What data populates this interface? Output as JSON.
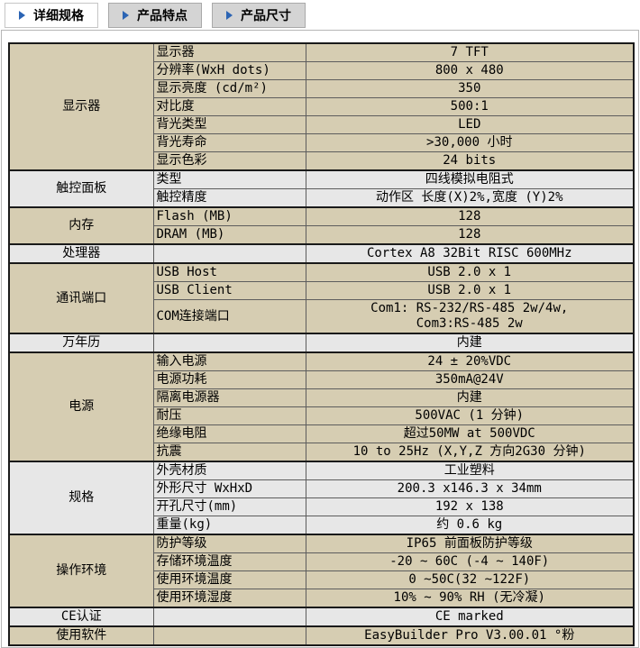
{
  "tabs": [
    {
      "label": "详细规格",
      "active": true
    },
    {
      "label": "产品特点",
      "active": false
    },
    {
      "label": "产品尺寸",
      "active": false
    }
  ],
  "colors": {
    "section_tan": "#d6cdb2",
    "section_gray": "#e7e7e7",
    "tab_active_bg": "#ffffff",
    "tab_inactive_bg": "#d4d4d4",
    "tab_arrow_blue": "#2b64b4",
    "table_border": "#1a1a1a"
  },
  "icons": {
    "tab_arrow": "right-triangle"
  },
  "spec_table": {
    "sections": [
      {
        "category": "显示器",
        "shade": "tan",
        "rows": [
          {
            "param": "显示器",
            "value": "7 TFT"
          },
          {
            "param": "分辨率(WxH dots)",
            "value": "800 x 480"
          },
          {
            "param": "显示亮度 (cd/m²)",
            "value": "350"
          },
          {
            "param": "对比度",
            "value": "500:1"
          },
          {
            "param": "背光类型",
            "value": "LED"
          },
          {
            "param": "背光寿命",
            "value": ">30,000 小时"
          },
          {
            "param": "显示色彩",
            "value": "24 bits"
          }
        ]
      },
      {
        "category": "触控面板",
        "shade": "gray",
        "rows": [
          {
            "param": "类型",
            "value": "四线模拟电阻式"
          },
          {
            "param": "触控精度",
            "value": "动作区 长度(X)2%,宽度 (Y)2%"
          }
        ]
      },
      {
        "category": "内存",
        "shade": "tan",
        "rows": [
          {
            "param": "Flash (MB)",
            "value": "128"
          },
          {
            "param": "DRAM (MB)",
            "value": "128"
          }
        ]
      },
      {
        "category": "处理器",
        "shade": "gray",
        "rows": [
          {
            "param": "",
            "value": "Cortex A8 32Bit RISC 600MHz"
          }
        ]
      },
      {
        "category": "通讯端口",
        "shade": "tan",
        "rows": [
          {
            "param": "USB Host",
            "value": "USB 2.0 x 1"
          },
          {
            "param": "USB Client",
            "value": "USB 2.0 x 1"
          },
          {
            "param": "COM连接端口",
            "value": "Com1: RS-232/RS-485 2w/4w,\nCom3:RS-485 2w"
          }
        ]
      },
      {
        "category": "万年历",
        "shade": "gray",
        "rows": [
          {
            "param": "",
            "value": "内建"
          }
        ]
      },
      {
        "category": "电源",
        "shade": "tan",
        "rows": [
          {
            "param": "输入电源",
            "value": "24 ± 20%VDC"
          },
          {
            "param": "电源功耗",
            "value": "350mA@24V"
          },
          {
            "param": "隔离电源器",
            "value": "内建"
          },
          {
            "param": "耐压",
            "value": "500VAC (1 分钟)"
          },
          {
            "param": "绝缘电阻",
            "value": "超过50MW at 500VDC"
          },
          {
            "param": "抗震",
            "value": "10 to 25Hz (X,Y,Z 方向2G30 分钟)"
          }
        ]
      },
      {
        "category": "规格",
        "shade": "gray",
        "rows": [
          {
            "param": "外壳材质",
            "value": "工业塑料"
          },
          {
            "param": "外形尺寸 WxHxD",
            "value": "200.3 x146.3 x 34mm"
          },
          {
            "param": "开孔尺寸(mm)",
            "value": "192 x 138"
          },
          {
            "param": "重量(kg)",
            "value": "约 0.6 kg"
          }
        ]
      },
      {
        "category": "操作环境",
        "shade": "tan",
        "rows": [
          {
            "param": "防护等级",
            "value": "IP65 前面板防护等级"
          },
          {
            "param": "存储环境温度",
            "value": "-20 ~ 60C (-4 ~ 140F)"
          },
          {
            "param": "使用环境温度",
            "value": "0 ~50C(32 ~122F)"
          },
          {
            "param": "使用环境湿度",
            "value": "10% ~ 90% RH (无冷凝)"
          }
        ]
      },
      {
        "category": "CE认证",
        "shade": "gray",
        "rows": [
          {
            "param": "",
            "value": "CE marked"
          }
        ]
      },
      {
        "category": "使用软件",
        "shade": "tan",
        "rows": [
          {
            "param": "",
            "value": "EasyBuilder Pro V3.00.01 °粉"
          }
        ]
      }
    ]
  }
}
